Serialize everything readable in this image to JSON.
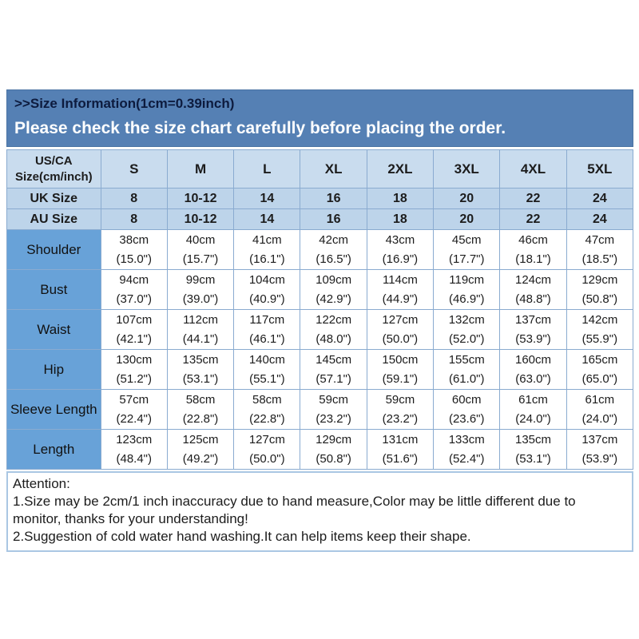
{
  "banner": {
    "title": ">>Size Information(1cm=0.39inch)",
    "subtitle": "Please check the size chart carefully before placing the order."
  },
  "table": {
    "header": [
      "US/CA\nSize(cm/inch)",
      "S",
      "M",
      "L",
      "XL",
      "2XL",
      "3XL",
      "4XL",
      "5XL"
    ],
    "size_rows": [
      {
        "label": "UK Size",
        "values": [
          "8",
          "10-12",
          "14",
          "16",
          "18",
          "20",
          "22",
          "24"
        ]
      },
      {
        "label": "AU Size",
        "values": [
          "8",
          "10-12",
          "14",
          "16",
          "18",
          "20",
          "22",
          "24"
        ]
      }
    ],
    "measure_rows": [
      {
        "label": "Shoulder",
        "cm": [
          "38cm",
          "40cm",
          "41cm",
          "42cm",
          "43cm",
          "45cm",
          "46cm",
          "47cm"
        ],
        "inch": [
          "(15.0\")",
          "(15.7\")",
          "(16.1\")",
          "(16.5\")",
          "(16.9\")",
          "(17.7\")",
          "(18.1\")",
          "(18.5\")"
        ]
      },
      {
        "label": "Bust",
        "cm": [
          "94cm",
          "99cm",
          "104cm",
          "109cm",
          "114cm",
          "119cm",
          "124cm",
          "129cm"
        ],
        "inch": [
          "(37.0\")",
          "(39.0\")",
          "(40.9\")",
          "(42.9\")",
          "(44.9\")",
          "(46.9\")",
          "(48.8\")",
          "(50.8\")"
        ]
      },
      {
        "label": "Waist",
        "cm": [
          "107cm",
          "112cm",
          "117cm",
          "122cm",
          "127cm",
          "132cm",
          "137cm",
          "142cm"
        ],
        "inch": [
          "(42.1\")",
          "(44.1\")",
          "(46.1\")",
          "(48.0\")",
          "(50.0\")",
          "(52.0\")",
          "(53.9\")",
          "(55.9\")"
        ]
      },
      {
        "label": "Hip",
        "cm": [
          "130cm",
          "135cm",
          "140cm",
          "145cm",
          "150cm",
          "155cm",
          "160cm",
          "165cm"
        ],
        "inch": [
          "(51.2\")",
          "(53.1\")",
          "(55.1\")",
          "(57.1\")",
          "(59.1\")",
          "(61.0\")",
          "(63.0\")",
          "(65.0\")"
        ]
      },
      {
        "label": "Sleeve Length",
        "cm": [
          "57cm",
          "58cm",
          "58cm",
          "59cm",
          "59cm",
          "60cm",
          "61cm",
          "61cm"
        ],
        "inch": [
          "(22.4\")",
          "(22.8\")",
          "(22.8\")",
          "(23.2\")",
          "(23.2\")",
          "(23.6\")",
          "(24.0\")",
          "(24.0\")"
        ]
      },
      {
        "label": "Length",
        "cm": [
          "123cm",
          "125cm",
          "127cm",
          "129cm",
          "131cm",
          "133cm",
          "135cm",
          "137cm"
        ],
        "inch": [
          "(48.4\")",
          "(49.2\")",
          "(50.0\")",
          "(50.8\")",
          "(51.6\")",
          "(52.4\")",
          "(53.1\")",
          "(53.9\")"
        ]
      }
    ]
  },
  "attention": {
    "heading": "Attention:",
    "lines": [
      "1.Size may be 2cm/1 inch inaccuracy due to hand measure,Color may be little different due to monitor, thanks for your understanding!",
      "2.Suggestion of cold water hand washing.It can help items keep their shape."
    ]
  },
  "colors": {
    "banner_bg": "#5580b4",
    "banner_title": "#0d1b3e",
    "banner_sub": "#ffffff",
    "header_bg": "#c9dcee",
    "sizerow_bg": "#bdd4ea",
    "label_bg": "#68a2d8",
    "grid": "#8aabd0",
    "text": "#1c1c1c",
    "att_border": "#aac7e3"
  }
}
